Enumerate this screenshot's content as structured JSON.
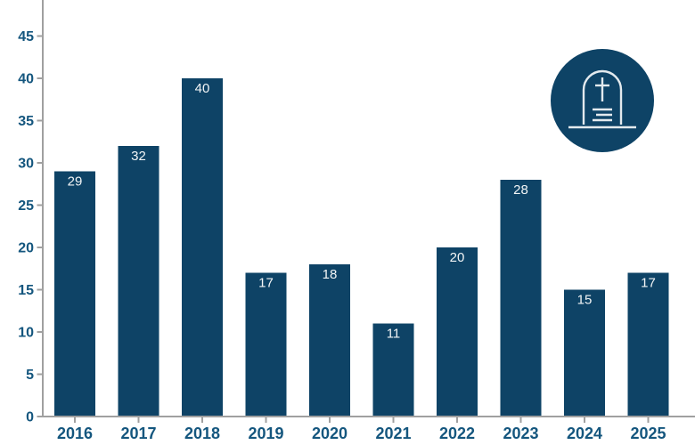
{
  "chart_data": {
    "type": "bar",
    "categories": [
      "2016",
      "2017",
      "2018",
      "2019",
      "2020",
      "2021",
      "2022",
      "2023",
      "2024",
      "2025"
    ],
    "values": [
      29,
      32,
      40,
      17,
      18,
      11,
      20,
      28,
      15,
      17
    ],
    "title": "",
    "xlabel": "",
    "ylabel": "",
    "ylim": [
      0,
      45
    ],
    "yticks": [
      0,
      5,
      10,
      15,
      20,
      25,
      30,
      35,
      40,
      45
    ],
    "grid": false,
    "legend": "none",
    "bar_value_labels": [
      "29",
      "32",
      "40",
      "17",
      "18",
      "11",
      "20",
      "28",
      "15",
      "17"
    ]
  },
  "icon": {
    "name": "tombstone-icon",
    "shape": "gravestone with cross and inscription lines inside a filled circle"
  },
  "colors": {
    "background": "#ffffff",
    "bar": "#0e4366",
    "axis_label": "#14567e",
    "axis_line": "#a0a0a0",
    "bar_label": "#f2f5f6",
    "icon_circle": "#0e4366",
    "icon_glyph": "#e3eaee"
  }
}
